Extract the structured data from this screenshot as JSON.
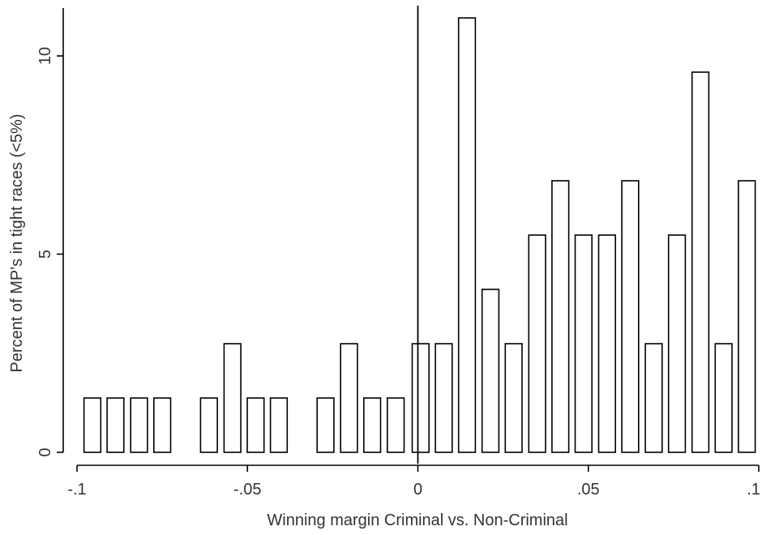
{
  "chart_data": {
    "type": "bar",
    "title": "",
    "xlabel": "Winning margin Criminal vs. Non-Criminal",
    "ylabel": "Percent of MP's in tight races (<5%)",
    "xlim": [
      -0.1,
      0.1
    ],
    "ylim": [
      0,
      11
    ],
    "reference_line_x": 0,
    "grid": false,
    "x_ticks": [
      {
        "value": -0.1,
        "label": "-.1"
      },
      {
        "value": -0.05,
        "label": "-.05"
      },
      {
        "value": 0,
        "label": "0"
      },
      {
        "value": 0.05,
        "label": ".05"
      },
      {
        "value": 0.1,
        "label": ".1"
      }
    ],
    "y_ticks": [
      {
        "value": 0,
        "label": "0"
      },
      {
        "value": 5,
        "label": "5"
      },
      {
        "value": 10,
        "label": "10"
      }
    ],
    "bin_width": 0.006849,
    "bars": [
      {
        "x": -0.0955,
        "value": 1.37
      },
      {
        "x": -0.0887,
        "value": 1.37
      },
      {
        "x": -0.0818,
        "value": 1.37
      },
      {
        "x": -0.075,
        "value": 1.37
      },
      {
        "x": -0.0613,
        "value": 1.37
      },
      {
        "x": -0.0544,
        "value": 2.74
      },
      {
        "x": -0.0476,
        "value": 1.37
      },
      {
        "x": -0.0408,
        "value": 1.37
      },
      {
        "x": -0.0271,
        "value": 1.37
      },
      {
        "x": -0.0202,
        "value": 2.74
      },
      {
        "x": -0.0134,
        "value": 1.37
      },
      {
        "x": -0.0065,
        "value": 1.37
      },
      {
        "x": 0.0008,
        "value": 2.74
      },
      {
        "x": 0.0076,
        "value": 2.74
      },
      {
        "x": 0.0144,
        "value": 10.96
      },
      {
        "x": 0.0213,
        "value": 4.11
      },
      {
        "x": 0.0281,
        "value": 2.74
      },
      {
        "x": 0.035,
        "value": 5.48
      },
      {
        "x": 0.0418,
        "value": 6.85
      },
      {
        "x": 0.0486,
        "value": 5.48
      },
      {
        "x": 0.0555,
        "value": 5.48
      },
      {
        "x": 0.0623,
        "value": 6.85
      },
      {
        "x": 0.0692,
        "value": 2.74
      },
      {
        "x": 0.076,
        "value": 5.48
      },
      {
        "x": 0.0829,
        "value": 9.59
      },
      {
        "x": 0.0897,
        "value": 2.74
      },
      {
        "x": 0.0965,
        "value": 6.85
      }
    ]
  }
}
